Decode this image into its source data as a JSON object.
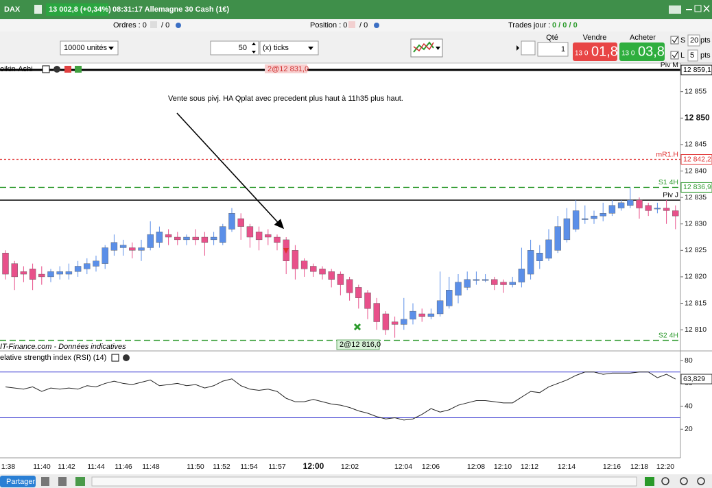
{
  "titlebar": {
    "symbol": "DAX",
    "price": "13 002,8 (+0,34%)",
    "info": "08:31:17 Allemagne 30 Cash (1€)"
  },
  "status": {
    "orders": "Ordres : 0",
    "orders_total": "/ 0",
    "position": "Position : 0",
    "position_total": "/ 0",
    "trades_label": "Trades jour :",
    "trades": "0 / 0 / 0"
  },
  "toolbar": {
    "quantity": "10000 unités",
    "ticks_value": "50",
    "ticks_unit": "(x) ticks",
    "qty_label": "Qté",
    "qty": "1",
    "sell_label": "Vendre",
    "sell_small": "13 0",
    "sell_big": "01,8",
    "buy_label": "Acheter",
    "buy_small": "13 0",
    "buy_big": "03,8",
    "stop_label": "S",
    "stop_value": "20",
    "stop_unit": "pts",
    "limit_label": "L",
    "limit_value": "5",
    "limit_unit": "pts"
  },
  "chart": {
    "indicator": "eikin-Ashi",
    "marker_top": "2@12 831,0",
    "marker_bottom": "2@12 816,0",
    "annotation": "Vente sous pivj. HA Qplat avec precedent plus haut à 11h35 plus haut.",
    "footer": "IT-Finance.com - Données indicatives"
  },
  "chart_data": [
    {
      "type": "candlestick",
      "up_color": "#5b8fe8",
      "down_color": "#e8508a",
      "open": [
        12824.5,
        12822.5,
        12821,
        12821.5,
        12820.5,
        12820,
        12820.5,
        12820.5,
        12821,
        12821.5,
        12822,
        12822.5,
        12825,
        12825.5,
        12825.5,
        12825,
        12825.5,
        12826.5,
        12828,
        12827.5,
        12827,
        12827.5,
        12827.5,
        12827,
        12826.5,
        12829,
        12831,
        12829.5,
        12828.5,
        12828,
        12827.5,
        12827,
        12825,
        12823,
        12822,
        12821.5,
        12821,
        12820.5,
        12819.5,
        12818,
        12817,
        12815,
        12813,
        12811.5,
        12811,
        12812,
        12813,
        12812.5,
        12813,
        12814.5,
        12816.5,
        12818,
        12819.5,
        12819.5,
        12819.5,
        12819,
        12818.5,
        12819,
        12820.5,
        12823,
        12823.5,
        12825,
        12827,
        12829,
        12831,
        12831,
        12831.5,
        12832,
        12833,
        12833.5,
        12834.5,
        12833.5,
        12833,
        12833,
        12832.5
      ],
      "high": [
        12825,
        12823,
        12822,
        12822.5,
        12822,
        12821.5,
        12822,
        12822.5,
        12823,
        12823.5,
        12824,
        12826,
        12828,
        12827,
        12826.5,
        12827,
        12830.5,
        12829.5,
        12829,
        12828.5,
        12828,
        12829,
        12828.5,
        12828.5,
        12830,
        12833,
        12832,
        12830,
        12829.5,
        12829,
        12828,
        12827.5,
        12826,
        12823.5,
        12822.5,
        12822,
        12821.5,
        12821,
        12820,
        12818.5,
        12817.5,
        12816,
        12813.5,
        12812.5,
        12816,
        12815,
        12814,
        12814,
        12821,
        12820,
        12820.5,
        12821,
        12821,
        12820.5,
        12820,
        12819.5,
        12820,
        12825.5,
        12827,
        12826,
        12829,
        12831.5,
        12833,
        12834.5,
        12833.5,
        12832.5,
        12834,
        12834.5,
        12834.5,
        12836.9,
        12835,
        12834,
        12834,
        12834.5,
        12833.5
      ],
      "low": [
        12819.5,
        12817.5,
        12819,
        12817.5,
        12818.5,
        12819,
        12819.5,
        12819.5,
        12820,
        12820.5,
        12821,
        12821.5,
        12824,
        12824,
        12823.5,
        12823,
        12825,
        12825.5,
        12826,
        12826,
        12826,
        12826,
        12824,
        12826,
        12826,
        12828.5,
        12827,
        12825.5,
        12825,
        12826,
        12825,
        12820.5,
        12819.5,
        12820,
        12820,
        12819.5,
        12818,
        12816.5,
        12815.5,
        12814,
        12812,
        12810,
        12809,
        12808.5,
        12810,
        12811,
        12811.5,
        12812,
        12812.5,
        12814,
        12815,
        12817.5,
        12818.5,
        12819,
        12817.5,
        12817,
        12818,
        12818,
        12819.5,
        12821.5,
        12823,
        12824.5,
        12826.5,
        12828.5,
        12830,
        12830,
        12830.5,
        12831.5,
        12832.5,
        12833,
        12831,
        12831.5,
        12832,
        12830,
        12829
      ],
      "close": [
        12820.5,
        12820,
        12820.5,
        12819.5,
        12820,
        12821,
        12821,
        12821,
        12822,
        12822.5,
        12823,
        12825.5,
        12826.5,
        12826,
        12825,
        12825.5,
        12828,
        12828.5,
        12827.5,
        12827,
        12827.5,
        12827,
        12826.5,
        12827.5,
        12829.5,
        12832,
        12829.5,
        12827.5,
        12827,
        12827.5,
        12826.5,
        12823,
        12821.5,
        12821.5,
        12821,
        12820.5,
        12819.5,
        12818.5,
        12817,
        12816,
        12814,
        12811.5,
        12810,
        12811,
        12812,
        12813.5,
        12812.5,
        12813,
        12815.5,
        12817.5,
        12819,
        12819.5,
        12819.5,
        12819.5,
        12818.5,
        12818.5,
        12819,
        12821.5,
        12825,
        12824.5,
        12827,
        12829.5,
        12831,
        12832.5,
        12831,
        12831.5,
        12832,
        12833.5,
        12834,
        12834.5,
        12833,
        12832.5,
        12833,
        12832.5,
        12831.5
      ],
      "ylim": [
        12806,
        12860.4
      ],
      "yticks": [
        {
          "value": 12855,
          "label": "12 855"
        },
        {
          "value": 12850,
          "label": "12 850"
        },
        {
          "value": 12845,
          "label": "12 845"
        },
        {
          "value": 12840,
          "label": "12 840"
        },
        {
          "value": 12835,
          "label": "12 835"
        },
        {
          "value": 12830,
          "label": "12 830"
        },
        {
          "value": 12825,
          "label": "12 825"
        },
        {
          "value": 12820,
          "label": "12 820"
        },
        {
          "value": 12815,
          "label": "12 815"
        },
        {
          "value": 12810,
          "label": "12 810"
        }
      ],
      "bold_tick": 12850,
      "levels": [
        {
          "name": "Piv M",
          "value": 12859.1,
          "value_label": "12 859,1",
          "color": "#000000",
          "style": "solid"
        },
        {
          "name": "mR1.H",
          "value": 12842.2,
          "value_label": "12 842,2",
          "color": "#e03030",
          "style": "dotted"
        },
        {
          "name": "S1 4H",
          "value": 12836.9,
          "value_label": "12 836,9",
          "color": "#2e9a2e",
          "style": "dashed"
        },
        {
          "name": "Piv J",
          "value": 12834.5,
          "color": "#000000",
          "style": "solid"
        },
        {
          "name": "S2 4H",
          "value": 12808,
          "color": "#2e9a2e",
          "style": "dashed"
        }
      ],
      "time_labels": [
        "1:38",
        "11:40",
        "11:42",
        "11:44",
        "11:46",
        "11:48",
        "11:50",
        "11:52",
        "11:54",
        "11:57",
        "12:00",
        "12:02",
        "12:04",
        "12:06",
        "12:08",
        "12:10",
        "12:12",
        "12:14",
        "12:16",
        "12:18",
        "12:20"
      ]
    },
    {
      "type": "line",
      "title": "elative strength index (RSI) (14)",
      "color": "#222222",
      "values": [
        57,
        56,
        55,
        57,
        53,
        56,
        55,
        56,
        55,
        58,
        57,
        60,
        62,
        60,
        59,
        61,
        63,
        58,
        59,
        60,
        58,
        59,
        56,
        58,
        62,
        64,
        58,
        55,
        54,
        55,
        53,
        47,
        44,
        44,
        46,
        44,
        42,
        41,
        39,
        36,
        34,
        31,
        29,
        30,
        28,
        29,
        33,
        38,
        35,
        37,
        41,
        43,
        45,
        45,
        44,
        43,
        43,
        48,
        53,
        52,
        57,
        60,
        63,
        67,
        70,
        70,
        68,
        69,
        69,
        69,
        70,
        70,
        65,
        68,
        63.829
      ],
      "ylim": [
        -5,
        87.2
      ],
      "yticks": [
        20,
        40,
        60,
        80
      ],
      "bands": [
        30,
        70
      ],
      "band_color": "#3a3ad0",
      "last_label": "63,829"
    }
  ],
  "bottombar": {
    "share": "Partager"
  }
}
